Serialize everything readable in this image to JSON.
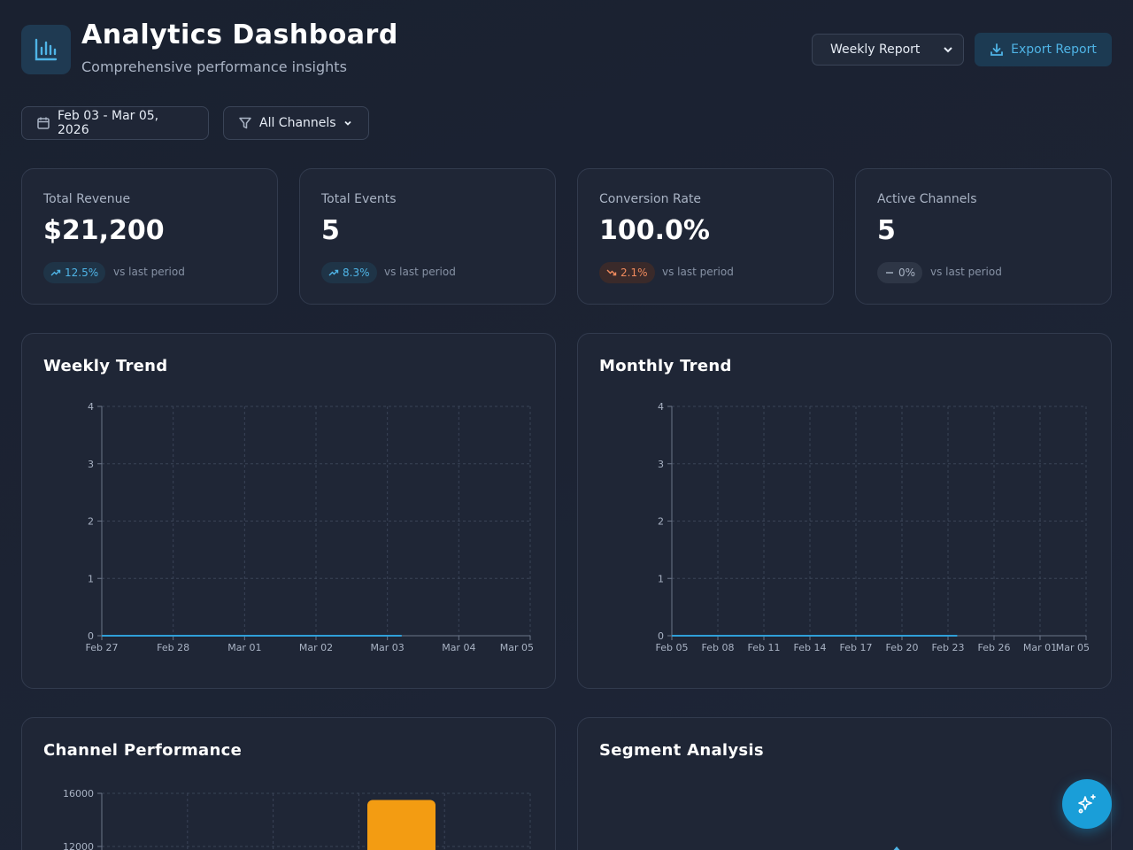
{
  "header": {
    "title": "Analytics Dashboard",
    "subtitle": "Comprehensive performance insights",
    "report_select": "Weekly Report",
    "export_label": "Export Report"
  },
  "filters": {
    "date_range": "Feb 03 - Mar 05, 2026",
    "channels": "All Channels"
  },
  "kpis": [
    {
      "label": "Total Revenue",
      "value": "$21,200",
      "change": "12.5%",
      "direction": "up",
      "vs": "vs last period"
    },
    {
      "label": "Total Events",
      "value": "5",
      "change": "8.3%",
      "direction": "up",
      "vs": "vs last period"
    },
    {
      "label": "Conversion Rate",
      "value": "100.0%",
      "change": "2.1%",
      "direction": "down",
      "vs": "vs last period"
    },
    {
      "label": "Active Channels",
      "value": "5",
      "change": "0%",
      "direction": "flat",
      "vs": "vs last period"
    }
  ],
  "panels": {
    "weekly": "Weekly Trend",
    "monthly": "Monthly Trend",
    "channel": "Channel Performance",
    "segment": "Segment Analysis"
  },
  "colors": {
    "accent": "#1a9ed8",
    "line": "#2f9fd8",
    "bar": "#f39c12",
    "down": "#f08a5d"
  },
  "chart_data": [
    {
      "type": "line",
      "title": "Weekly Trend",
      "x": [
        "Feb 27",
        "Feb 28",
        "Mar 01",
        "Mar 02",
        "Mar 03",
        "Mar 04",
        "Mar 05"
      ],
      "series": [
        {
          "x": [
            "Feb 27",
            "Feb 28",
            "Mar 01",
            "Mar 02",
            "Mar 03"
          ],
          "values": [
            0,
            0,
            0,
            0,
            0
          ]
        }
      ],
      "yticks": [
        0,
        1,
        2,
        3,
        4
      ],
      "ylim": [
        0,
        4
      ],
      "grid": true
    },
    {
      "type": "line",
      "title": "Monthly Trend",
      "x": [
        "Feb 05",
        "Feb 08",
        "Feb 11",
        "Feb 14",
        "Feb 17",
        "Feb 20",
        "Feb 23",
        "Feb 26",
        "Mar 01",
        "Mar 05"
      ],
      "series": [
        {
          "x": [
            "Feb 05",
            "Feb 08",
            "Feb 11",
            "Feb 14",
            "Feb 17",
            "Feb 20",
            "Feb 23"
          ],
          "values": [
            0,
            0,
            0,
            0,
            0,
            0,
            0
          ]
        }
      ],
      "yticks": [
        0,
        1,
        2,
        3,
        4
      ],
      "ylim": [
        0,
        4
      ],
      "grid": true
    },
    {
      "type": "bar",
      "title": "Channel Performance",
      "yticks": [
        16000,
        12000
      ],
      "ylim": [
        0,
        16000
      ],
      "visible_bar_value": 15500,
      "grid": true
    }
  ]
}
